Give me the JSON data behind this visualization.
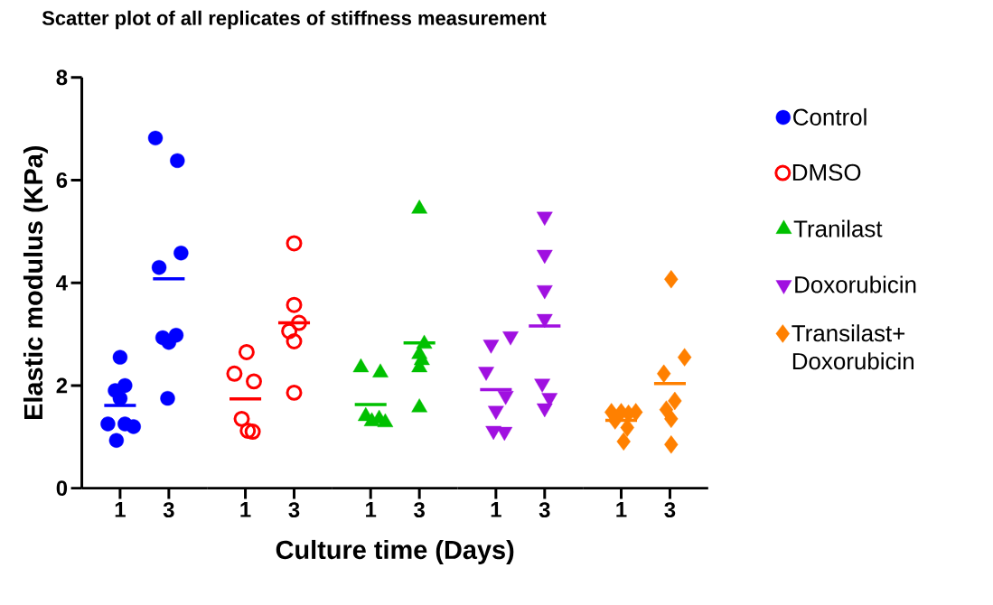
{
  "chart_data": [
    {
      "type": "scatter",
      "title": "Scatter plot of all replicates of stiffness measurement",
      "ylabel": "Elastic modulus (KPa)",
      "xlim": [
        -0.57,
        4.57
      ],
      "xticks": [
        1,
        3
      ],
      "ylim": [
        0,
        8
      ],
      "yticks": [
        0,
        2,
        4,
        6,
        8
      ],
      "grid": false,
      "legend": "right",
      "series": [
        {
          "name": "Control",
          "color": "#0000ff",
          "marker": "circle",
          "x": [
            1.0,
            1.2,
            0.8,
            1.0,
            0.5,
            1.2,
            1.55,
            0.85,
            2.45,
            3.35,
            3.5,
            2.6,
            3.3,
            2.75,
            3.0,
            2.95
          ],
          "values": [
            2.55,
            2.0,
            1.9,
            1.75,
            1.25,
            1.25,
            1.2,
            0.93,
            6.82,
            6.38,
            4.58,
            4.3,
            2.98,
            2.93,
            2.84,
            1.75
          ]
        },
        {
          "type": "line",
          "color": "#0000ff",
          "x": [
            0.35,
            1.65
          ],
          "values": [
            1.61,
            1.61
          ]
        },
        {
          "type": "line",
          "color": "#0000ff",
          "x": [
            2.35,
            3.65
          ],
          "values": [
            4.08,
            4.08
          ]
        }
      ]
    },
    {
      "type": "scatter",
      "xlim": [
        -0.57,
        4.57
      ],
      "xticks": [
        1,
        3
      ],
      "ylim": [
        0,
        8
      ],
      "tick_labels": "x",
      "grid": false,
      "legend": "right",
      "series": [
        {
          "name": "DMSO",
          "color": "#ff0000",
          "marker": "circle open",
          "x": [
            1.05,
            0.55,
            1.35,
            0.85,
            1.1,
            1.3,
            3.0,
            3.0,
            3.2,
            2.8,
            3.0,
            3.0
          ],
          "values": [
            2.65,
            2.23,
            2.08,
            1.35,
            1.12,
            1.1,
            4.77,
            3.57,
            3.22,
            3.06,
            2.86,
            1.86
          ]
        },
        {
          "type": "line",
          "color": "#ff0000",
          "x": [
            0.35,
            1.65
          ],
          "values": [
            1.74,
            1.74
          ]
        },
        {
          "type": "line",
          "color": "#ff0000",
          "x": [
            2.35,
            3.65
          ],
          "values": [
            3.22,
            3.22
          ]
        }
      ]
    },
    {
      "type": "scatter",
      "xlabel": "Culture time (Days)",
      "xlim": [
        -0.57,
        4.57
      ],
      "xticks": [
        1,
        3
      ],
      "ylim": [
        0,
        8
      ],
      "tick_labels": "x",
      "grid": false,
      "legend": "right",
      "series": [
        {
          "name": "Tranilast",
          "color": "#00c000",
          "marker": "triangle",
          "x": [
            0.6,
            1.4,
            0.8,
            1.35,
            1.05,
            1.6,
            3.0,
            3.2,
            3.0,
            3.1,
            3.0,
            3.0
          ],
          "values": [
            2.35,
            2.25,
            1.4,
            1.35,
            1.3,
            1.28,
            5.44,
            2.81,
            2.61,
            2.49,
            2.35,
            1.57
          ]
        },
        {
          "type": "line",
          "color": "#00c000",
          "x": [
            0.35,
            1.65
          ],
          "values": [
            1.63,
            1.63
          ]
        },
        {
          "type": "line",
          "color": "#00c000",
          "x": [
            2.35,
            3.65
          ],
          "values": [
            2.83,
            2.83
          ]
        }
      ]
    },
    {
      "type": "scatter",
      "xlim": [
        -0.57,
        4.57
      ],
      "xticks": [
        1,
        3
      ],
      "ylim": [
        0,
        8
      ],
      "tick_labels": "x",
      "grid": false,
      "legend": "right",
      "series": [
        {
          "name": "Doxorubicin",
          "color": "#a010e0",
          "marker": "triangle down",
          "x": [
            1.6,
            0.8,
            0.6,
            1.4,
            1.0,
            0.9,
            1.35,
            3.0,
            3.0,
            3.0,
            3.0,
            2.9,
            3.2,
            3.0
          ],
          "values": [
            2.96,
            2.8,
            2.27,
            1.8,
            1.51,
            1.12,
            1.1,
            5.29,
            4.55,
            3.86,
            3.3,
            2.04,
            1.76,
            1.56
          ]
        },
        {
          "type": "line",
          "color": "#a010e0",
          "x": [
            0.35,
            1.65
          ],
          "values": [
            1.92,
            1.92
          ]
        },
        {
          "type": "line",
          "color": "#a010e0",
          "x": [
            2.35,
            3.65
          ],
          "values": [
            3.16,
            3.16
          ]
        }
      ]
    },
    {
      "type": "scatter",
      "xlim": [
        -0.57,
        4.57
      ],
      "xticks": [
        1,
        3
      ],
      "ylim": [
        0,
        8
      ],
      "tick_labels": "x",
      "grid": false,
      "legend": "right",
      "series": [
        {
          "name": "Transilast+Doxorubicin",
          "color": "#ff8000",
          "marker": "diamond",
          "x": [
            0.6,
            1.0,
            1.6,
            1.3,
            0.75,
            1.25,
            1.1,
            3.05,
            3.6,
            2.75,
            3.2,
            2.85,
            3.05,
            3.05
          ],
          "values": [
            1.48,
            1.48,
            1.48,
            1.45,
            1.32,
            1.18,
            0.91,
            4.07,
            2.55,
            2.23,
            1.7,
            1.53,
            1.35,
            0.85
          ]
        },
        {
          "type": "line",
          "color": "#ff8000",
          "x": [
            0.35,
            1.65
          ],
          "values": [
            1.32,
            1.32
          ]
        },
        {
          "type": "line",
          "color": "#ff8000",
          "x": [
            2.35,
            3.65
          ],
          "values": [
            2.04,
            2.04
          ]
        }
      ]
    }
  ]
}
